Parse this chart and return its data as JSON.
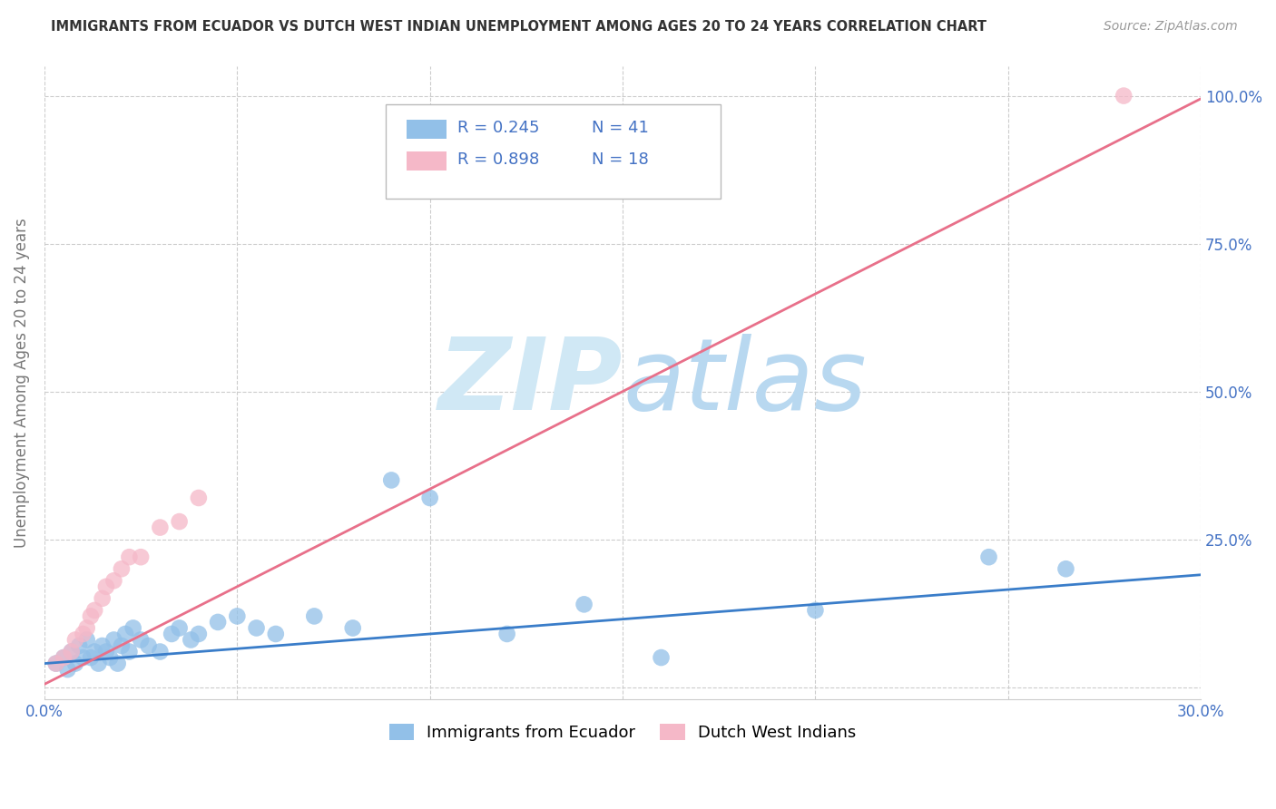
{
  "title": "IMMIGRANTS FROM ECUADOR VS DUTCH WEST INDIAN UNEMPLOYMENT AMONG AGES 20 TO 24 YEARS CORRELATION CHART",
  "source": "Source: ZipAtlas.com",
  "ylabel": "Unemployment Among Ages 20 to 24 years",
  "xlabel_blue": "Immigrants from Ecuador",
  "xlabel_pink": "Dutch West Indians",
  "xlim": [
    0.0,
    0.3
  ],
  "ylim": [
    -0.02,
    1.05
  ],
  "x_ticks": [
    0.0,
    0.05,
    0.1,
    0.15,
    0.2,
    0.25,
    0.3
  ],
  "x_tick_labels": [
    "0.0%",
    "",
    "",
    "",
    "",
    "",
    "30.0%"
  ],
  "y_ticks": [
    0.0,
    0.25,
    0.5,
    0.75,
    1.0
  ],
  "y_tick_labels_right": [
    "",
    "25.0%",
    "50.0%",
    "75.0%",
    "100.0%"
  ],
  "R_blue": 0.245,
  "N_blue": 41,
  "R_pink": 0.898,
  "N_pink": 18,
  "color_blue": "#92c0e8",
  "color_pink": "#f5b8c8",
  "line_color_blue": "#3a7dc9",
  "line_color_pink": "#e8708a",
  "blue_scatter_x": [
    0.003,
    0.005,
    0.006,
    0.007,
    0.008,
    0.009,
    0.01,
    0.011,
    0.012,
    0.013,
    0.014,
    0.015,
    0.016,
    0.017,
    0.018,
    0.019,
    0.02,
    0.021,
    0.022,
    0.023,
    0.025,
    0.027,
    0.03,
    0.033,
    0.035,
    0.038,
    0.04,
    0.045,
    0.05,
    0.055,
    0.06,
    0.07,
    0.08,
    0.09,
    0.1,
    0.12,
    0.14,
    0.16,
    0.2,
    0.245,
    0.265
  ],
  "blue_scatter_y": [
    0.04,
    0.05,
    0.03,
    0.06,
    0.04,
    0.07,
    0.05,
    0.08,
    0.05,
    0.06,
    0.04,
    0.07,
    0.06,
    0.05,
    0.08,
    0.04,
    0.07,
    0.09,
    0.06,
    0.1,
    0.08,
    0.07,
    0.06,
    0.09,
    0.1,
    0.08,
    0.09,
    0.11,
    0.12,
    0.1,
    0.09,
    0.12,
    0.1,
    0.35,
    0.32,
    0.09,
    0.14,
    0.05,
    0.13,
    0.22,
    0.2
  ],
  "pink_scatter_x": [
    0.003,
    0.005,
    0.007,
    0.008,
    0.01,
    0.011,
    0.012,
    0.013,
    0.015,
    0.016,
    0.018,
    0.02,
    0.022,
    0.025,
    0.03,
    0.035,
    0.04,
    0.28
  ],
  "pink_scatter_y": [
    0.04,
    0.05,
    0.06,
    0.08,
    0.09,
    0.1,
    0.12,
    0.13,
    0.15,
    0.17,
    0.18,
    0.2,
    0.22,
    0.22,
    0.27,
    0.28,
    0.32,
    1.0
  ],
  "blue_trend_x": [
    0.0,
    0.3
  ],
  "blue_trend_y": [
    0.04,
    0.19
  ],
  "pink_trend_x": [
    0.0,
    0.3
  ],
  "pink_trend_y": [
    0.005,
    0.995
  ],
  "grid_color": "#cccccc",
  "background_color": "#ffffff",
  "title_color": "#333333",
  "axis_label_color": "#777777",
  "tick_color": "#4472c4",
  "watermark_zip_color": "#d0e8f5",
  "watermark_atlas_color": "#b8d8f0"
}
